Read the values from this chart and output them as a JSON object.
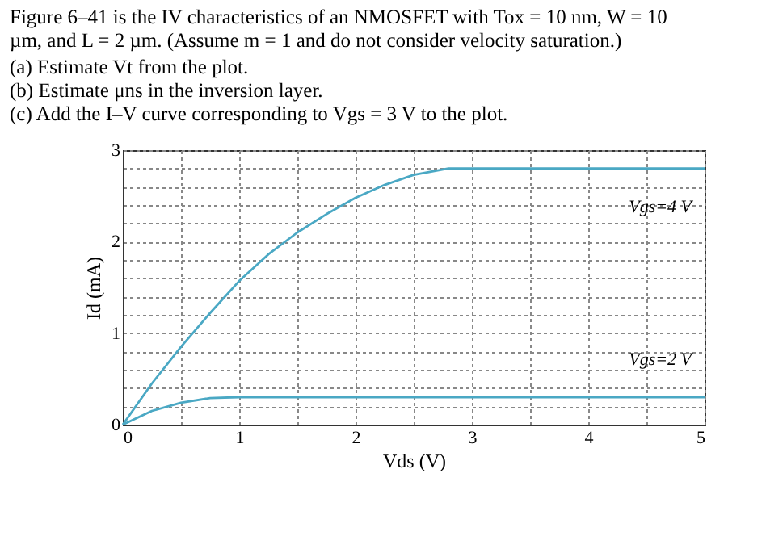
{
  "chart_data": {
    "type": "line",
    "title": "Figure 6–41 is the IV characteristics of an NMOSFET with Tox = 10 nm, W = 10 µm, and L = 2 µm. (Assume m = 1 and do not consider velocity saturation.)",
    "annotations": [
      "(a)  Estimate Vt from the plot.",
      "(b)  Estimate μns in the inversion layer.",
      "(c)  Add the I–V curve corresponding to Vgs = 3 V to the plot."
    ],
    "xlabel": "Vds (V)",
    "ylabel": "Id (mA)",
    "series": [
      {
        "name": "Vgs=4 V",
        "color": "#4aa8c4",
        "x": [
          0,
          0.25,
          0.5,
          0.75,
          1,
          1.25,
          1.5,
          1.75,
          2,
          2.25,
          2.5,
          2.8,
          3,
          4,
          5
        ],
        "values": [
          0,
          0.45,
          0.85,
          1.22,
          1.57,
          1.86,
          2.1,
          2.3,
          2.48,
          2.62,
          2.73,
          2.8,
          2.8,
          2.8,
          2.8
        ]
      },
      {
        "name": "Vgs=2 V",
        "color": "#4aa8c4",
        "x": [
          0,
          0.25,
          0.5,
          0.75,
          1,
          2,
          3,
          4,
          5
        ],
        "values": [
          0,
          0.15,
          0.24,
          0.29,
          0.3,
          0.3,
          0.3,
          0.3,
          0.3
        ]
      }
    ],
    "xlim": [
      0,
      5
    ],
    "ylim": [
      0,
      3
    ],
    "xticks": [
      0,
      {
        "value": 0.5,
        "label": null
      },
      1,
      {
        "value": 1.5,
        "label": null
      },
      2,
      {
        "value": 2.5,
        "label": null
      },
      3,
      {
        "value": 3.5,
        "label": null
      },
      4,
      {
        "value": 4.5,
        "label": null
      },
      5
    ],
    "yticks": [
      0,
      {
        "value": 0.2,
        "label": null
      },
      {
        "value": 0.4,
        "label": null
      },
      {
        "value": 0.6,
        "label": null
      },
      {
        "value": 0.8,
        "label": null
      },
      1,
      {
        "value": 1.2,
        "label": null
      },
      {
        "value": 1.4,
        "label": null
      },
      {
        "value": 1.6,
        "label": null
      },
      {
        "value": 1.8,
        "label": null
      },
      2,
      {
        "value": 2.2,
        "label": null
      },
      {
        "value": 2.4,
        "label": null
      },
      {
        "value": 2.6,
        "label": null
      },
      {
        "value": 2.8,
        "label": null
      },
      3
    ],
    "grid": true,
    "marker": "none",
    "line_style": "solid"
  }
}
